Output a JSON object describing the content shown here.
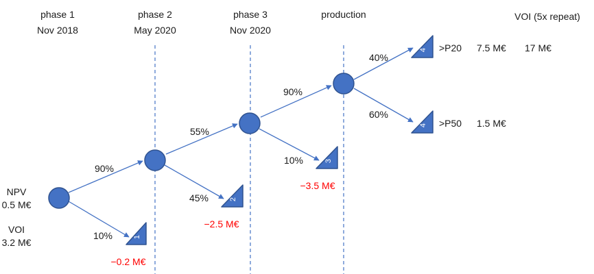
{
  "phases": [
    {
      "name": "phase 1",
      "date": "Nov 2018"
    },
    {
      "name": "phase 2",
      "date": "May 2020"
    },
    {
      "name": "phase 3",
      "date": "Nov 2020"
    },
    {
      "name": "production",
      "date": ""
    }
  ],
  "voi_header": "VOI (5x repeat)",
  "root": {
    "npv_label": "NPV",
    "npv_value": "0.5 M€",
    "voi_label": "VOI",
    "voi_value": "3.2 M€"
  },
  "probabilities": {
    "p1_success": "90%",
    "p1_fail": "10%",
    "p2_success": "55%",
    "p2_fail": "45%",
    "p3_success": "90%",
    "p3_fail": "10%",
    "prod_high": "40%",
    "prod_low": "60%"
  },
  "terminals": {
    "t1": {
      "number": "1",
      "value": "−0.2 M€"
    },
    "t2": {
      "number": "2",
      "value": "−2.5 M€"
    },
    "t3": {
      "number": "3",
      "value": "−3.5 M€"
    },
    "p20": {
      "number": "4",
      "label": ">P20",
      "value": "7.5 M€",
      "voi": "17 M€"
    },
    "p50": {
      "number": "4",
      "label": ">P50",
      "value": "1.5 M€"
    }
  },
  "colors": {
    "node_fill": "#4472c4",
    "node_stroke": "#2f528f",
    "edge": "#4472c4",
    "negative": "#ff0000"
  }
}
